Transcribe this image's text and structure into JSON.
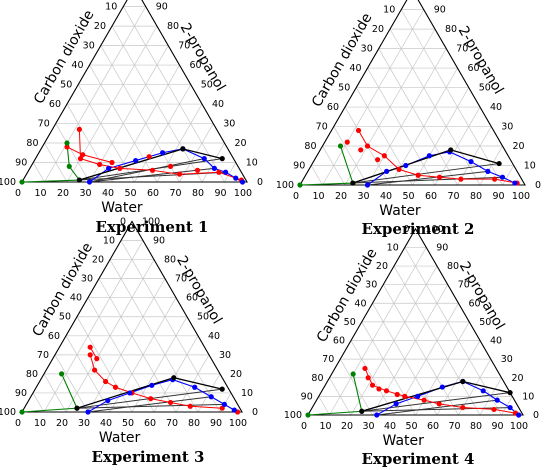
{
  "chart_data": [
    {
      "type": "ternary",
      "title": "Experiment 1",
      "axes": {
        "left_label": "Carbon dioxide",
        "right_label": "2-propanol",
        "bottom_label": "Water",
        "tick_labels": [
          "0",
          "10",
          "20",
          "30",
          "40",
          "50",
          "60",
          "70",
          "80",
          "90",
          "100"
        ]
      },
      "grid": true,
      "colors": {
        "red": "#ff0000",
        "blue": "#0000ff",
        "green": "#008000",
        "black": "#000000",
        "grid": "#c8c8c8"
      },
      "blue": [
        [
          30,
          0
        ],
        [
          35,
          7
        ],
        [
          45,
          11
        ],
        [
          55,
          15
        ],
        [
          63,
          17
        ],
        [
          75,
          12
        ],
        [
          82,
          7
        ],
        [
          88,
          5
        ],
        [
          94,
          2
        ],
        [
          98,
          0
        ]
      ],
      "black": [
        [
          25,
          1
        ],
        [
          63,
          17
        ],
        [
          83,
          12
        ]
      ],
      "green": [
        [
          10,
          20
        ],
        [
          17,
          8
        ],
        [
          25,
          1
        ],
        [
          0,
          0
        ]
      ],
      "red": [
        [
          12,
          27
        ],
        [
          20,
          12
        ],
        [
          30,
          9
        ],
        [
          40,
          7
        ],
        [
          55,
          6
        ],
        [
          68,
          4
        ],
        [
          85,
          5
        ],
        [
          97,
          1
        ],
        [
          11,
          18
        ],
        [
          20,
          14
        ],
        [
          35,
          10
        ],
        [
          50,
          13
        ],
        [
          62,
          8
        ],
        [
          75,
          6
        ]
      ],
      "tie_lines": [
        [
          [
            25,
            1
          ],
          [
            83,
            12
          ]
        ],
        [
          [
            25,
            1
          ],
          [
            63,
            17
          ]
        ],
        [
          [
            30,
            0
          ],
          [
            82,
            7
          ]
        ],
        [
          [
            30,
            0
          ],
          [
            75,
            12
          ]
        ],
        [
          [
            25,
            1
          ],
          [
            88,
            5
          ]
        ]
      ],
      "red_lines": [
        [
          [
            12,
            27
          ],
          [
            20,
            12
          ]
        ],
        [
          [
            20,
            12
          ],
          [
            30,
            9
          ]
        ],
        [
          [
            30,
            9
          ],
          [
            40,
            7
          ]
        ],
        [
          [
            40,
            7
          ],
          [
            55,
            6
          ]
        ],
        [
          [
            55,
            6
          ],
          [
            68,
            4
          ]
        ],
        [
          [
            68,
            4
          ],
          [
            85,
            5
          ]
        ],
        [
          [
            85,
            5
          ],
          [
            97,
            1
          ]
        ],
        [
          [
            11,
            18
          ],
          [
            20,
            14
          ]
        ],
        [
          [
            20,
            14
          ],
          [
            35,
            10
          ]
        ]
      ]
    },
    {
      "type": "ternary",
      "title": "Experiment 2",
      "axes": {
        "left_label": "Carbon dioxide",
        "right_label": "2-propanol",
        "bottom_label": "Water",
        "tick_labels": [
          "0",
          "10",
          "20",
          "30",
          "40",
          "50",
          "60",
          "70",
          "80",
          "90",
          "100"
        ]
      },
      "grid": true,
      "colors": {
        "red": "#ff0000",
        "blue": "#0000ff",
        "green": "#008000",
        "black": "#000000",
        "grid": "#c8c8c8"
      },
      "blue": [
        [
          30,
          0
        ],
        [
          35,
          7
        ],
        [
          42,
          10
        ],
        [
          50,
          15
        ],
        [
          58,
          17
        ],
        [
          70,
          12
        ],
        [
          80,
          7
        ],
        [
          88,
          4
        ],
        [
          95,
          1
        ]
      ],
      "black": [
        [
          23,
          1
        ],
        [
          58,
          18
        ],
        [
          83,
          11
        ]
      ],
      "green": [
        [
          8,
          20
        ],
        [
          23,
          1
        ],
        [
          0,
          0
        ]
      ],
      "red": [
        [
          12,
          28
        ],
        [
          20,
          20
        ],
        [
          30,
          15
        ],
        [
          40,
          8
        ],
        [
          50,
          5
        ],
        [
          60,
          4
        ],
        [
          70,
          3
        ],
        [
          85,
          3
        ],
        [
          96,
          1
        ],
        [
          10,
          22
        ],
        [
          18,
          18
        ],
        [
          28,
          13
        ]
      ],
      "tie_lines": [
        [
          [
            23,
            1
          ],
          [
            83,
            11
          ]
        ],
        [
          [
            23,
            1
          ],
          [
            58,
            18
          ]
        ],
        [
          [
            30,
            0
          ],
          [
            80,
            7
          ]
        ],
        [
          [
            23,
            1
          ],
          [
            88,
            4
          ]
        ]
      ],
      "red_lines": [
        [
          [
            12,
            28
          ],
          [
            20,
            20
          ]
        ],
        [
          [
            20,
            20
          ],
          [
            30,
            15
          ]
        ],
        [
          [
            30,
            15
          ],
          [
            40,
            8
          ]
        ],
        [
          [
            40,
            8
          ],
          [
            50,
            5
          ]
        ],
        [
          [
            50,
            5
          ],
          [
            60,
            4
          ]
        ],
        [
          [
            60,
            4
          ],
          [
            70,
            3
          ]
        ],
        [
          [
            70,
            3
          ],
          [
            85,
            3
          ]
        ],
        [
          [
            85,
            3
          ],
          [
            96,
            1
          ]
        ]
      ]
    },
    {
      "type": "ternary",
      "title": "Experiment 3",
      "axes": {
        "left_label": "Carbon dioxide",
        "right_label": "2-propanol",
        "bottom_label": "Water",
        "tick_labels": [
          "0",
          "10",
          "20",
          "30",
          "40",
          "50",
          "60",
          "70",
          "80",
          "90",
          "100"
        ]
      },
      "grid": true,
      "colors": {
        "red": "#ff0000",
        "blue": "#0000ff",
        "green": "#008000",
        "black": "#000000",
        "grid": "#c8c8c8"
      },
      "blue": [
        [
          30,
          0
        ],
        [
          36,
          6
        ],
        [
          44,
          10
        ],
        [
          52,
          14
        ],
        [
          60,
          17
        ],
        [
          72,
          13
        ],
        [
          82,
          8
        ],
        [
          90,
          4
        ],
        [
          96,
          1
        ]
      ],
      "black": [
        [
          24,
          2
        ],
        [
          60,
          18
        ],
        [
          85,
          12
        ]
      ],
      "green": [
        [
          8,
          20
        ],
        [
          24,
          2
        ],
        [
          0,
          0
        ]
      ],
      "red": [
        [
          14,
          34
        ],
        [
          20,
          28
        ],
        [
          16,
          30
        ],
        [
          22,
          22
        ],
        [
          30,
          16
        ],
        [
          36,
          13
        ],
        [
          45,
          10
        ],
        [
          55,
          7
        ],
        [
          65,
          5
        ],
        [
          75,
          3
        ],
        [
          90,
          2
        ],
        [
          98,
          0
        ]
      ],
      "tie_lines": [
        [
          [
            24,
            2
          ],
          [
            85,
            12
          ]
        ],
        [
          [
            24,
            2
          ],
          [
            60,
            18
          ]
        ],
        [
          [
            30,
            0
          ],
          [
            82,
            8
          ]
        ],
        [
          [
            24,
            2
          ],
          [
            90,
            4
          ]
        ]
      ],
      "red_lines": [
        [
          [
            14,
            34
          ],
          [
            20,
            28
          ]
        ],
        [
          [
            16,
            30
          ],
          [
            22,
            22
          ]
        ],
        [
          [
            22,
            22
          ],
          [
            30,
            16
          ]
        ],
        [
          [
            30,
            16
          ],
          [
            36,
            13
          ]
        ],
        [
          [
            36,
            13
          ],
          [
            45,
            10
          ]
        ],
        [
          [
            45,
            10
          ],
          [
            55,
            7
          ]
        ],
        [
          [
            55,
            7
          ],
          [
            65,
            5
          ]
        ],
        [
          [
            65,
            5
          ],
          [
            75,
            3
          ]
        ],
        [
          [
            75,
            3
          ],
          [
            90,
            2
          ]
        ]
      ]
    },
    {
      "type": "ternary",
      "title": "Experiment 4",
      "axes": {
        "left_label": "Carbon dioxide",
        "right_label": "2-propanol",
        "bottom_label": "Water",
        "tick_labels": [
          "0",
          "10",
          "20",
          "30",
          "40",
          "50",
          "60",
          "70",
          "80",
          "90",
          "100"
        ]
      },
      "grid": true,
      "colors": {
        "red": "#ff0000",
        "blue": "#0000ff",
        "green": "#008000",
        "black": "#000000",
        "grid": "#c8c8c8"
      },
      "blue": [
        [
          32,
          0
        ],
        [
          38,
          6
        ],
        [
          46,
          10
        ],
        [
          55,
          15
        ],
        [
          63,
          18
        ],
        [
          75,
          13
        ],
        [
          84,
          8
        ],
        [
          92,
          4
        ],
        [
          98,
          0
        ]
      ],
      "black": [
        [
          24,
          2
        ],
        [
          63,
          18
        ],
        [
          88,
          12
        ]
      ],
      "green": [
        [
          10,
          22
        ],
        [
          24,
          2
        ],
        [
          0,
          0
        ]
      ],
      "red": [
        [
          14,
          25
        ],
        [
          22,
          16
        ],
        [
          30,
          13
        ],
        [
          40,
          10
        ],
        [
          50,
          8
        ],
        [
          58,
          6
        ],
        [
          70,
          4
        ],
        [
          85,
          3
        ],
        [
          96,
          1
        ],
        [
          18,
          20
        ],
        [
          26,
          14
        ],
        [
          36,
          11
        ]
      ],
      "tie_lines": [
        [
          [
            24,
            2
          ],
          [
            88,
            12
          ]
        ],
        [
          [
            24,
            2
          ],
          [
            63,
            18
          ]
        ],
        [
          [
            32,
            0
          ],
          [
            84,
            8
          ]
        ],
        [
          [
            24,
            2
          ],
          [
            92,
            4
          ]
        ]
      ],
      "red_lines": [
        [
          [
            14,
            25
          ],
          [
            22,
            16
          ]
        ],
        [
          [
            22,
            16
          ],
          [
            30,
            13
          ]
        ],
        [
          [
            30,
            13
          ],
          [
            40,
            10
          ]
        ],
        [
          [
            40,
            10
          ],
          [
            50,
            8
          ]
        ],
        [
          [
            50,
            8
          ],
          [
            58,
            6
          ]
        ],
        [
          [
            58,
            6
          ],
          [
            70,
            4
          ]
        ],
        [
          [
            70,
            4
          ],
          [
            85,
            3
          ]
        ],
        [
          [
            85,
            3
          ],
          [
            96,
            1
          ]
        ]
      ]
    }
  ]
}
